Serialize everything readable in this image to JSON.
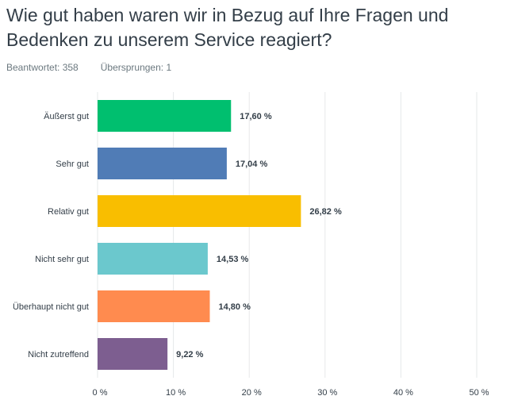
{
  "question": {
    "title": "Wie gut haben waren wir in Bezug auf Ihre Fragen und Bedenken zu unserem Service reagiert?",
    "answered_label": "Beantwortet: 358",
    "skipped_label": "Übersprungen: 1"
  },
  "chart_data": {
    "type": "bar",
    "orientation": "horizontal",
    "categories": [
      "Äußerst gut",
      "Sehr gut",
      "Relativ gut",
      "Nicht sehr gut",
      "Überhaupt nicht gut",
      "Nicht zutreffend"
    ],
    "values": [
      17.6,
      17.04,
      26.82,
      14.53,
      14.8,
      9.22
    ],
    "value_labels": [
      "17,60 %",
      "17,04 %",
      "26,82 %",
      "14,53 %",
      "14,80 %",
      "9,22 %"
    ],
    "colors": [
      "#00bf6f",
      "#507cb6",
      "#f9be00",
      "#6bc8cd",
      "#ff8b4f",
      "#7d5e90"
    ],
    "xlim": [
      0,
      50
    ],
    "xticks": [
      0,
      10,
      20,
      30,
      40,
      50
    ],
    "xtick_labels": [
      "0 %",
      "10 %",
      "20 %",
      "30 %",
      "40 %",
      "50 %"
    ],
    "grid": true
  }
}
